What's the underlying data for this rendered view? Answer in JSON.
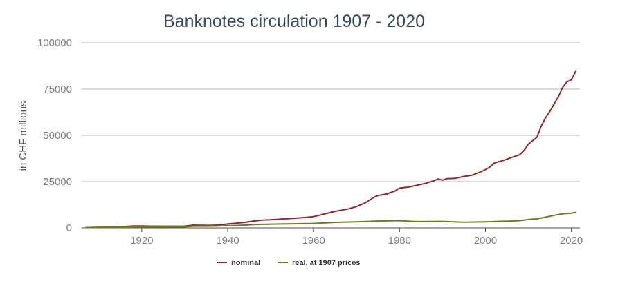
{
  "chart_data": {
    "type": "line",
    "title": "Banknotes circulation 1907 - 2020",
    "xlabel": "",
    "ylabel": "in CHF millions",
    "xlim": [
      1906,
      2022
    ],
    "ylim": [
      0,
      100000
    ],
    "x_ticks": [
      "1920",
      "1940",
      "1960",
      "1980",
      "2000",
      "2020"
    ],
    "y_ticks": [
      "0",
      "25000",
      "50000",
      "75000",
      "100000"
    ],
    "grid": "horizontal",
    "legend_position": "bottom",
    "colors": {
      "title": "#3b4a5c",
      "grid": "#b4b4b4",
      "axis": "#4d4d4d",
      "nominal": "#8b2a2e",
      "real": "#6b7a1f"
    },
    "series": [
      {
        "name": "nominal",
        "color": "#8b2a2e",
        "points": [
          [
            1907,
            200
          ],
          [
            1910,
            300
          ],
          [
            1914,
            450
          ],
          [
            1916,
            700
          ],
          [
            1918,
            1000
          ],
          [
            1920,
            1050
          ],
          [
            1922,
            950
          ],
          [
            1925,
            900
          ],
          [
            1928,
            880
          ],
          [
            1930,
            950
          ],
          [
            1932,
            1500
          ],
          [
            1934,
            1400
          ],
          [
            1936,
            1350
          ],
          [
            1938,
            1600
          ],
          [
            1940,
            2100
          ],
          [
            1942,
            2500
          ],
          [
            1944,
            3000
          ],
          [
            1946,
            3700
          ],
          [
            1948,
            4200
          ],
          [
            1950,
            4400
          ],
          [
            1955,
            5100
          ],
          [
            1958,
            5600
          ],
          [
            1960,
            6100
          ],
          [
            1962,
            7200
          ],
          [
            1965,
            8900
          ],
          [
            1968,
            10200
          ],
          [
            1970,
            11500
          ],
          [
            1972,
            13500
          ],
          [
            1974,
            16500
          ],
          [
            1975,
            17500
          ],
          [
            1977,
            18300
          ],
          [
            1979,
            20000
          ],
          [
            1980,
            21500
          ],
          [
            1982,
            22000
          ],
          [
            1984,
            23000
          ],
          [
            1986,
            24000
          ],
          [
            1988,
            25500
          ],
          [
            1989,
            26400
          ],
          [
            1990,
            25800
          ],
          [
            1991,
            26600
          ],
          [
            1993,
            26800
          ],
          [
            1995,
            27800
          ],
          [
            1997,
            28500
          ],
          [
            1999,
            30400
          ],
          [
            2000,
            31500
          ],
          [
            2001,
            32800
          ],
          [
            2002,
            35000
          ],
          [
            2004,
            36300
          ],
          [
            2006,
            38000
          ],
          [
            2008,
            39600
          ],
          [
            2009,
            41800
          ],
          [
            2010,
            45300
          ],
          [
            2012,
            49000
          ],
          [
            2013,
            55000
          ],
          [
            2014,
            59500
          ],
          [
            2015,
            63000
          ],
          [
            2017,
            71000
          ],
          [
            2018,
            76000
          ],
          [
            2019,
            79000
          ],
          [
            2020,
            80000
          ],
          [
            2021,
            84500
          ]
        ]
      },
      {
        "name": "real, at 1907 prices",
        "color": "#6b7a1f",
        "points": [
          [
            1907,
            200
          ],
          [
            1910,
            280
          ],
          [
            1915,
            350
          ],
          [
            1920,
            450
          ],
          [
            1925,
            480
          ],
          [
            1930,
            560
          ],
          [
            1932,
            900
          ],
          [
            1935,
            900
          ],
          [
            1938,
            1000
          ],
          [
            1940,
            1200
          ],
          [
            1942,
            1300
          ],
          [
            1944,
            1500
          ],
          [
            1946,
            1800
          ],
          [
            1948,
            1900
          ],
          [
            1950,
            2000
          ],
          [
            1955,
            2200
          ],
          [
            1960,
            2400
          ],
          [
            1965,
            3000
          ],
          [
            1970,
            3300
          ],
          [
            1975,
            3700
          ],
          [
            1978,
            3800
          ],
          [
            1980,
            3900
          ],
          [
            1983,
            3500
          ],
          [
            1985,
            3400
          ],
          [
            1990,
            3500
          ],
          [
            1993,
            3200
          ],
          [
            1995,
            3100
          ],
          [
            2000,
            3300
          ],
          [
            2003,
            3500
          ],
          [
            2006,
            3700
          ],
          [
            2008,
            3900
          ],
          [
            2010,
            4500
          ],
          [
            2012,
            4900
          ],
          [
            2014,
            5800
          ],
          [
            2016,
            6800
          ],
          [
            2018,
            7600
          ],
          [
            2020,
            7900
          ],
          [
            2021,
            8400
          ]
        ]
      }
    ]
  }
}
